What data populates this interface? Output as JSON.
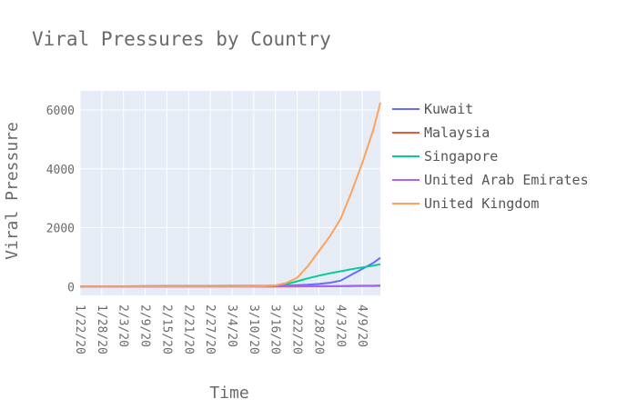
{
  "chart_data": {
    "type": "line",
    "title": "Viral Pressures by Country",
    "xlabel": "Time",
    "ylabel": "Viral Pressure",
    "x_tick_labels": [
      "1/22/20",
      "1/28/20",
      "2/3/20",
      "2/9/20",
      "2/15/20",
      "2/21/20",
      "2/27/20",
      "3/4/20",
      "3/10/20",
      "3/16/20",
      "3/22/20",
      "3/28/20",
      "4/3/20",
      "4/9/20"
    ],
    "y_ticks": [
      0,
      2000,
      4000,
      6000
    ],
    "y_tick_labels": [
      "0",
      "2000",
      "4000",
      "6000"
    ],
    "ylim": [
      -300,
      6650
    ],
    "xlim": [
      "1/22/20",
      "4/14/20"
    ],
    "grid": true,
    "legend_position": "right",
    "x": [
      "1/22/20",
      "1/28/20",
      "2/3/20",
      "2/9/20",
      "2/15/20",
      "2/21/20",
      "2/27/20",
      "3/4/20",
      "3/10/20",
      "3/13/20",
      "3/16/20",
      "3/19/20",
      "3/22/20",
      "3/25/20",
      "3/28/20",
      "3/31/20",
      "4/3/20",
      "4/6/20",
      "4/9/20",
      "4/12/20",
      "4/14/20"
    ],
    "series": [
      {
        "name": "Kuwait",
        "color": "#636efa",
        "values": [
          0,
          0,
          0,
          0,
          0,
          5,
          10,
          15,
          20,
          25,
          30,
          35,
          45,
          60,
          90,
          130,
          200,
          400,
          600,
          800,
          980
        ]
      },
      {
        "name": "Malaysia",
        "color": "#ef553b",
        "values": [
          0,
          0,
          0,
          0,
          0,
          0,
          0,
          0,
          0,
          0,
          2,
          3,
          4,
          5,
          6,
          8,
          10,
          12,
          15,
          18,
          20
        ]
      },
      {
        "name": "Singapore",
        "color": "#00cc96",
        "values": [
          0,
          5,
          10,
          15,
          20,
          20,
          20,
          20,
          20,
          25,
          40,
          80,
          180,
          280,
          370,
          450,
          520,
          590,
          650,
          710,
          760
        ]
      },
      {
        "name": "United Arab Emirates",
        "color": "#ab63fa",
        "values": [
          0,
          0,
          0,
          0,
          0,
          0,
          0,
          0,
          0,
          0,
          5,
          8,
          10,
          12,
          15,
          18,
          22,
          26,
          30,
          35,
          40
        ]
      },
      {
        "name": "United Kingdom",
        "color": "#ffa15a",
        "values": [
          0,
          0,
          0,
          0,
          0,
          0,
          0,
          0,
          5,
          15,
          40,
          120,
          300,
          700,
          1200,
          1700,
          2300,
          3200,
          4200,
          5300,
          6250
        ]
      }
    ]
  }
}
